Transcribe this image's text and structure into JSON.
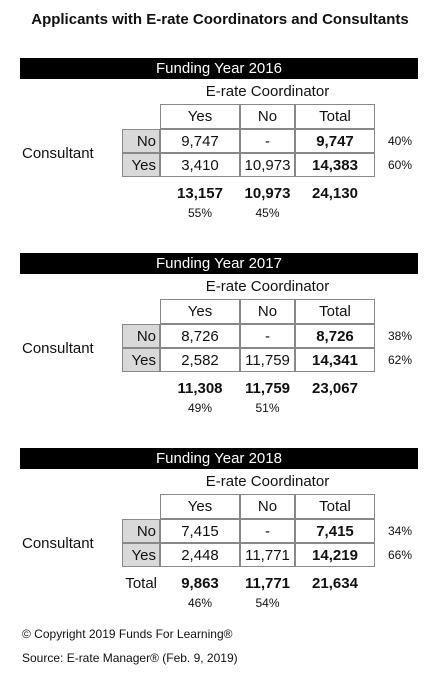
{
  "title": "Applicants with E-rate Coordinators and Consultants",
  "tables": [
    {
      "heading": "Funding Year 2016",
      "column_group": "E-rate Coordinator",
      "row_group": "Consultant",
      "columns": [
        "Yes",
        "No",
        "Total"
      ],
      "rows": [
        {
          "label": "No",
          "cells": [
            "9,747",
            "-",
            "9,747"
          ],
          "share": "40%"
        },
        {
          "label": "Yes",
          "cells": [
            "3,410",
            "10,973",
            "14,383"
          ],
          "share": "60%"
        }
      ],
      "totals": {
        "cells": [
          "13,157",
          "10,973",
          "24,130"
        ],
        "shares": [
          "55%",
          "45%"
        ]
      }
    },
    {
      "heading": "Funding Year 2017",
      "column_group": "E-rate Coordinator",
      "row_group": "Consultant",
      "columns": [
        "Yes",
        "No",
        "Total"
      ],
      "rows": [
        {
          "label": "No",
          "cells": [
            "8,726",
            "-",
            "8,726"
          ],
          "share": "38%"
        },
        {
          "label": "Yes",
          "cells": [
            "2,582",
            "11,759",
            "14,341"
          ],
          "share": "62%"
        }
      ],
      "totals": {
        "cells": [
          "11,308",
          "11,759",
          "23,067"
        ],
        "shares": [
          "49%",
          "51%"
        ]
      }
    },
    {
      "heading": "Funding Year 2018",
      "column_group": "E-rate Coordinator",
      "row_group": "Consultant",
      "columns": [
        "Yes",
        "No",
        "Total"
      ],
      "rows": [
        {
          "label": "No",
          "cells": [
            "7,415",
            "-",
            "7,415"
          ],
          "share": "34%"
        },
        {
          "label": "Yes",
          "cells": [
            "2,448",
            "11,771",
            "14,219"
          ],
          "share": "66%"
        }
      ],
      "totals": {
        "label": "Total",
        "cells": [
          "9,863",
          "11,771",
          "21,634"
        ],
        "shares": [
          "46%",
          "54%"
        ]
      }
    }
  ],
  "copyright": "© Copyright 2019 Funds For Learning®",
  "source": "Source: E-rate Manager® (Feb. 9, 2019)"
}
